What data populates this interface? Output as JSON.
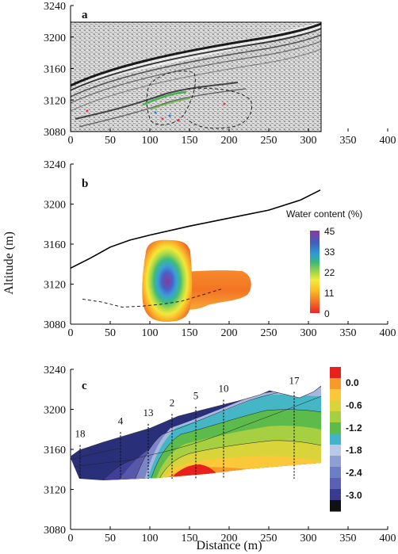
{
  "figure": {
    "y_axis_label": "Altitude (m)",
    "x_axis_label": "Distance (m)"
  },
  "chart_data": [
    {
      "panel": "a",
      "type": "image",
      "content": "ground penetrating radar profile",
      "xlim": [
        0,
        400
      ],
      "ylim": [
        3080,
        3240
      ],
      "x_ticks": [
        "0",
        "50",
        "100",
        "150",
        "200",
        "250",
        "300",
        "350",
        "400"
      ],
      "y_ticks": [
        "3240",
        "3200",
        "3160",
        "3120",
        "3080"
      ]
    },
    {
      "panel": "b",
      "type": "heatmap",
      "xlim": [
        0,
        400
      ],
      "ylim": [
        3080,
        3240
      ],
      "x_ticks": [
        "0",
        "50",
        "100",
        "150",
        "200",
        "250",
        "300",
        "350",
        "400"
      ],
      "y_ticks": [
        "3240",
        "3200",
        "3160",
        "3120",
        "3080"
      ],
      "surface": {
        "x": [
          0,
          25,
          50,
          75,
          100,
          150,
          200,
          250,
          290,
          315
        ],
        "y": [
          3136,
          3146,
          3157,
          3164,
          3169,
          3178,
          3186,
          3194,
          3204,
          3214
        ]
      },
      "dashed_line": {
        "x": [
          15,
          40,
          65,
          90,
          115,
          140,
          165,
          190
        ],
        "y": [
          3105,
          3102,
          3097,
          3098,
          3100,
          3103,
          3109,
          3115
        ]
      },
      "colorbar": {
        "title": "Water content (%)",
        "ticks": [
          "45",
          "33",
          "22",
          "11",
          "0"
        ],
        "colors": [
          "#e8262b",
          "#f47a24",
          "#fbbf26",
          "#f5ea3b",
          "#8fd04c",
          "#38b87a",
          "#2f9bd6",
          "#3f5fc0",
          "#6b4aa6",
          "#8a3a9a"
        ]
      }
    },
    {
      "panel": "c",
      "type": "area",
      "xlim": [
        0,
        400
      ],
      "ylim": [
        3080,
        3240
      ],
      "x_ticks": [
        "0",
        "50",
        "100",
        "150",
        "200",
        "250",
        "300",
        "350",
        "400"
      ],
      "y_ticks": [
        "3240",
        "3200",
        "3160",
        "3120",
        "3080"
      ],
      "boreholes": [
        {
          "name": "18",
          "x": 12
        },
        {
          "name": "4",
          "x": 63
        },
        {
          "name": "13",
          "x": 98
        },
        {
          "name": "2",
          "x": 128
        },
        {
          "name": "5",
          "x": 158
        },
        {
          "name": "10",
          "x": 193
        },
        {
          "name": "17",
          "x": 282
        }
      ],
      "colorbar": {
        "ticks": [
          "0.0",
          "-0.6",
          "-1.2",
          "-1.8",
          "-2.4",
          "-3.0"
        ],
        "colors": [
          "#e8201e",
          "#f79a2a",
          "#fbc83a",
          "#d8d43a",
          "#a6cf42",
          "#5dbb4a",
          "#43b3c9",
          "#b8c8e6",
          "#8e9fd3",
          "#6b7ec6",
          "#5a60b4",
          "#3a3a8e",
          "#111111"
        ]
      }
    }
  ]
}
